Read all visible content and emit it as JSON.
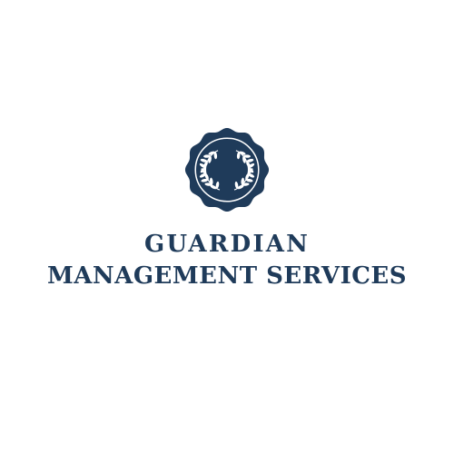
{
  "brand": {
    "name_line1": "GUARDIAN",
    "name_line2": "MANAGEMENT SERVICES"
  },
  "emblem": {
    "icon": "laurel-wreath-seal-icon"
  },
  "colors": {
    "brand": "#1f3b5a",
    "background": "#ffffff",
    "emblem_detail": "#ffffff"
  }
}
